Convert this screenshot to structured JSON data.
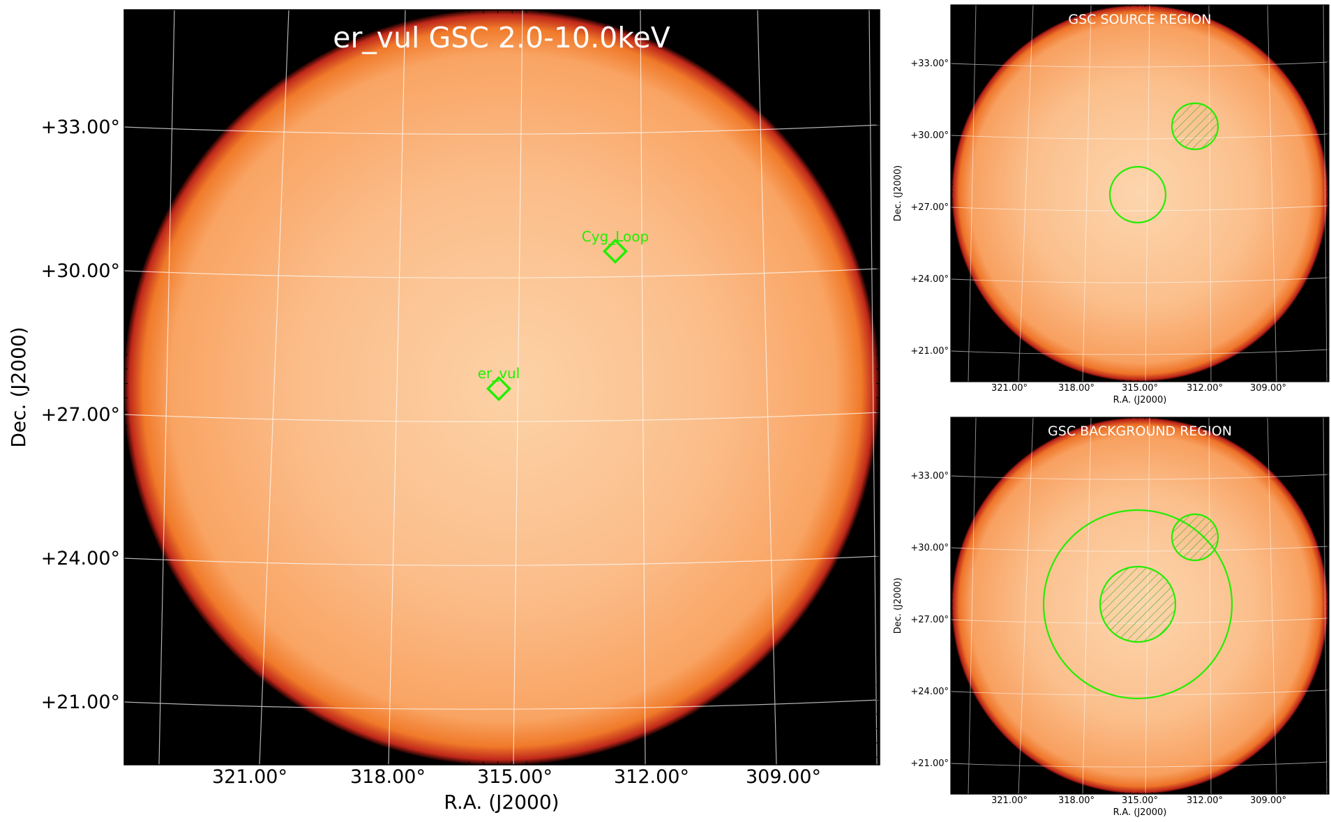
{
  "main_panel": {
    "title": "er_vul GSC 2.0-10.0keV",
    "xlabel": "R.A. (J2000)",
    "ylabel": "Dec. (J2000)",
    "x_ticks": [
      "321.00°",
      "318.00°",
      "315.00°",
      "312.00°",
      "309.00°"
    ],
    "y_ticks": [
      "+33.00°",
      "+30.00°",
      "+27.00°",
      "+24.00°",
      "+21.00°"
    ],
    "sources": [
      {
        "name": "Cyg_Loop",
        "marker": "diamond",
        "color": "#22ee00"
      },
      {
        "name": "er_vul",
        "marker": "diamond",
        "color": "#22ee00"
      }
    ]
  },
  "source_panel": {
    "title": "GSC SOURCE REGION",
    "xlabel": "R.A. (J2000)",
    "ylabel": "Dec. (J2000)",
    "x_ticks": [
      "321.00°",
      "318.00°",
      "315.00°",
      "312.00°",
      "309.00°"
    ],
    "y_ticks": [
      "+33.00°",
      "+30.00°",
      "+27.00°",
      "+24.00°",
      "+21.00°"
    ]
  },
  "background_panel": {
    "title": "GSC BACKGROUND REGION",
    "xlabel": "R.A. (J2000)",
    "ylabel": "Dec. (J2000)",
    "x_ticks": [
      "321.00°",
      "318.00°",
      "315.00°",
      "312.00°",
      "309.00°"
    ],
    "y_ticks": [
      "+33.00°",
      "+30.00°",
      "+27.00°",
      "+24.00°",
      "+21.00°"
    ]
  },
  "colors": {
    "background": "#000000",
    "disk_center": "#fcd2a6",
    "disk_mid": "#fbb078",
    "disk_edge": "#f07a2a",
    "disk_rim": "#c0281a",
    "region": "#22ee00",
    "grid": "#ffffff"
  }
}
